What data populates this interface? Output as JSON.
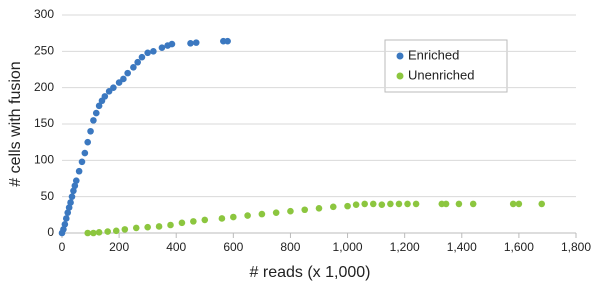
{
  "chart_data": {
    "type": "scatter",
    "xlabel": "# reads (x 1,000)",
    "ylabel": "# cells with fusion",
    "xlim": [
      0,
      1800
    ],
    "ylim": [
      0,
      300
    ],
    "xticks": [
      0,
      200,
      400,
      600,
      800,
      {
        "value": 1000,
        "label": "1,000"
      },
      {
        "value": 1200,
        "label": "1,200"
      },
      {
        "value": 1400,
        "label": "1,400"
      },
      {
        "value": 1600,
        "label": "1,600"
      },
      {
        "value": 1800,
        "label": "1,800"
      }
    ],
    "yticks": [
      0,
      50,
      100,
      150,
      200,
      250,
      300
    ],
    "grid": true,
    "legend": "upper right",
    "series": [
      {
        "name": "Enriched",
        "color": "#3b78c0",
        "x": [
          0,
          5,
          10,
          15,
          20,
          25,
          30,
          35,
          40,
          45,
          50,
          60,
          70,
          80,
          90,
          100,
          110,
          120,
          130,
          140,
          150,
          165,
          180,
          200,
          215,
          230,
          250,
          265,
          280,
          300,
          320,
          350,
          370,
          385,
          450,
          470,
          565,
          580
        ],
        "values": [
          0,
          5,
          12,
          20,
          28,
          35,
          42,
          50,
          58,
          65,
          72,
          85,
          98,
          110,
          125,
          140,
          155,
          165,
          175,
          182,
          188,
          195,
          200,
          207,
          212,
          220,
          228,
          235,
          242,
          248,
          250,
          255,
          258,
          260,
          261,
          262,
          264,
          264
        ]
      },
      {
        "name": "Unenriched",
        "color": "#8cc63f",
        "x": [
          90,
          110,
          130,
          160,
          190,
          220,
          260,
          300,
          340,
          380,
          420,
          460,
          500,
          560,
          600,
          650,
          700,
          750,
          800,
          850,
          900,
          950,
          1000,
          1030,
          1060,
          1090,
          1120,
          1150,
          1180,
          1210,
          1240,
          1330,
          1345,
          1390,
          1440,
          1580,
          1600,
          1680
        ],
        "values": [
          0,
          0,
          1,
          2,
          3,
          5,
          7,
          8,
          9,
          11,
          14,
          16,
          18,
          20,
          22,
          24,
          26,
          28,
          30,
          32,
          34,
          36,
          37,
          39,
          40,
          40,
          39,
          40,
          40,
          40,
          40,
          40,
          40,
          40,
          40,
          40,
          40,
          40
        ]
      }
    ]
  }
}
